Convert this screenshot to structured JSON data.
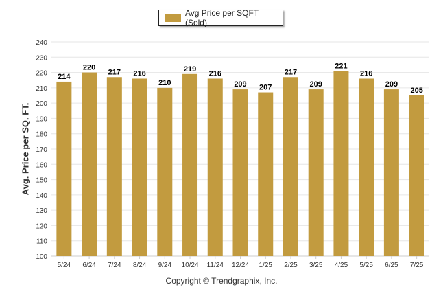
{
  "legend": {
    "label": "Avg Price per SQFT (Sold)",
    "color": "#C29B3F"
  },
  "footer": {
    "text": "Copyright © Trendgraphix, Inc."
  },
  "chart_data": {
    "type": "bar",
    "categories": [
      "5/24",
      "6/24",
      "7/24",
      "8/24",
      "9/24",
      "10/24",
      "11/24",
      "12/24",
      "1/25",
      "2/25",
      "3/25",
      "4/25",
      "5/25",
      "6/25",
      "7/25"
    ],
    "series": [
      {
        "name": "Avg Price per SQFT (Sold)",
        "values": [
          214,
          220,
          217,
          216,
          210,
          219,
          216,
          209,
          207,
          217,
          209,
          221,
          216,
          209,
          205
        ]
      }
    ],
    "xlabel": "",
    "ylabel": "Avg. Price per SQ. FT.",
    "ylim": [
      100,
      240
    ],
    "yticks": [
      100,
      110,
      120,
      130,
      140,
      150,
      160,
      170,
      180,
      190,
      200,
      210,
      220,
      230,
      240
    ],
    "grid": true,
    "legend_position": "top-center",
    "bar_color": "#C29B3F"
  }
}
